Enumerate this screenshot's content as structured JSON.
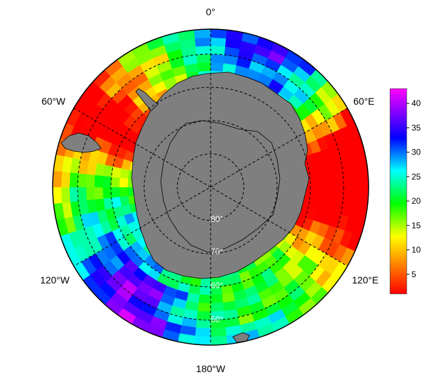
{
  "map": {
    "projection": "south-polar-stereographic",
    "longitude_labels": {
      "top": "0°",
      "right_upper": "60°E",
      "right_lower": "120°E",
      "bottom": "180°W",
      "left_lower": "120°W",
      "left_upper": "60°W"
    },
    "latitude_labels": [
      "80°",
      "70°",
      "60°",
      "50°"
    ],
    "land_color": "#7f7f7f",
    "gridlines": "dashed"
  },
  "colorbar": {
    "ticks": [
      "40",
      "35",
      "30",
      "25",
      "20",
      "15",
      "10",
      "5"
    ],
    "range": [
      1,
      43
    ],
    "colors": [
      "#ff0000",
      "#ff8000",
      "#ffff00",
      "#00ff00",
      "#00ffff",
      "#0000ff",
      "#8000ff",
      "#ff00ff"
    ]
  }
}
